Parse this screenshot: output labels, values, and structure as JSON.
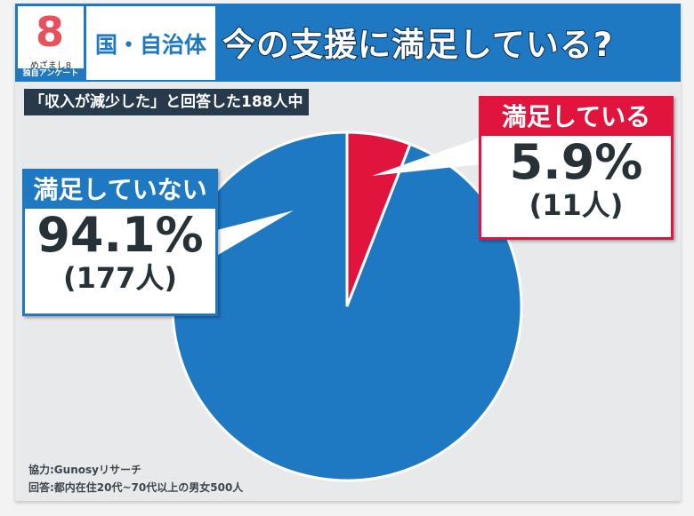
{
  "logo": {
    "name": "めざまし8",
    "tag": "独自アンケート"
  },
  "header": {
    "category": "国・自治体",
    "title": "今の支援に満足している?"
  },
  "subtitle": "「収入が減少した」と回答した188人中",
  "chart_data": {
    "type": "pie",
    "title": "今の支援に満足している?",
    "slices": [
      {
        "label": "満足している",
        "percent": 5.9,
        "count": 11,
        "count_label": "(11人)",
        "pct_label": "5.9%",
        "color": "#e0143c"
      },
      {
        "label": "満足していない",
        "percent": 94.1,
        "count": 177,
        "count_label": "(177人)",
        "pct_label": "94.1%",
        "color": "#1e78c2"
      }
    ]
  },
  "footer": {
    "source": "協力:Gunosyリサーチ",
    "respondents": "回答:都内在住20代~70代以上の男女500人"
  }
}
